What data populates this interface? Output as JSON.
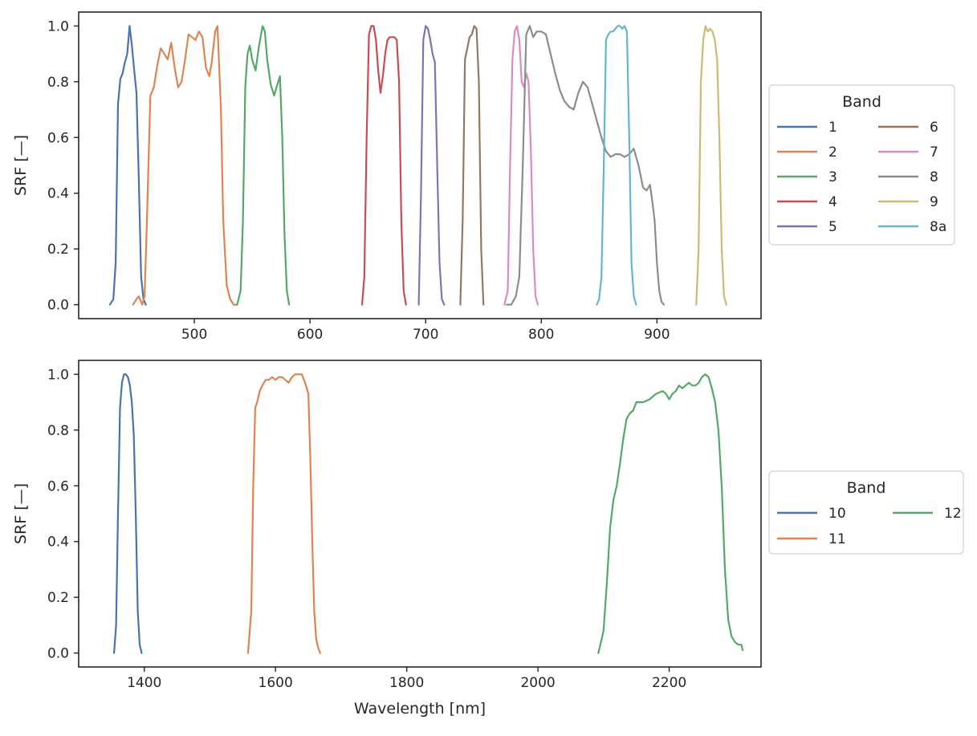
{
  "chart_data": [
    {
      "type": "line",
      "xlabel": "",
      "ylabel": "SRF [—]",
      "xlim": [
        400,
        990
      ],
      "ylim": [
        -0.05,
        1.05
      ],
      "xticks": [
        500,
        600,
        700,
        800,
        900
      ],
      "yticks": [
        0.0,
        0.2,
        0.4,
        0.6,
        0.8,
        1.0
      ],
      "grid": false,
      "legend": {
        "title": "Band",
        "placement": "outside-right",
        "columns": 2
      },
      "series": [
        {
          "name": "1",
          "color": "#4c72b0",
          "x": [
            427,
            430,
            432,
            434,
            436,
            438,
            440,
            442,
            444,
            446,
            448,
            450,
            452,
            454,
            456,
            458
          ],
          "y": [
            0.0,
            0.02,
            0.15,
            0.72,
            0.81,
            0.83,
            0.87,
            0.9,
            1.0,
            0.93,
            0.84,
            0.76,
            0.45,
            0.1,
            0.02,
            0.0
          ]
        },
        {
          "name": "2",
          "color": "#dd8452",
          "x": [
            447,
            450,
            452,
            455,
            457,
            459,
            462,
            465,
            468,
            471,
            474,
            477,
            480,
            483,
            486,
            489,
            492,
            495,
            498,
            501,
            504,
            507,
            510,
            513,
            515,
            518,
            520,
            523,
            525,
            528,
            531,
            534,
            537
          ],
          "y": [
            0.0,
            0.02,
            0.03,
            0.0,
            0.03,
            0.3,
            0.75,
            0.78,
            0.86,
            0.92,
            0.9,
            0.88,
            0.94,
            0.85,
            0.78,
            0.8,
            0.88,
            0.97,
            0.96,
            0.95,
            0.98,
            0.96,
            0.85,
            0.82,
            0.87,
            0.98,
            1.0,
            0.7,
            0.3,
            0.07,
            0.02,
            0.0,
            0.0
          ]
        },
        {
          "name": "3",
          "color": "#55a868",
          "x": [
            537,
            540,
            542,
            544,
            546,
            548,
            550,
            553,
            556,
            559,
            561,
            563,
            566,
            569,
            571,
            574,
            576,
            578,
            580,
            582
          ],
          "y": [
            0.0,
            0.05,
            0.3,
            0.78,
            0.9,
            0.93,
            0.88,
            0.84,
            0.93,
            1.0,
            0.98,
            0.88,
            0.79,
            0.75,
            0.78,
            0.82,
            0.6,
            0.25,
            0.05,
            0.0
          ]
        },
        {
          "name": "4",
          "color": "#c44e52",
          "x": [
            645,
            647,
            649,
            651,
            653,
            655,
            657,
            659,
            661,
            663,
            665,
            667,
            669,
            671,
            673,
            675,
            677,
            679,
            681,
            683
          ],
          "y": [
            0.0,
            0.1,
            0.6,
            0.97,
            1.0,
            1.0,
            0.95,
            0.84,
            0.76,
            0.82,
            0.9,
            0.95,
            0.96,
            0.96,
            0.96,
            0.95,
            0.8,
            0.3,
            0.05,
            0.0
          ]
        },
        {
          "name": "5",
          "color": "#8172b3",
          "x": [
            694,
            696,
            698,
            700,
            702,
            704,
            706,
            708,
            710,
            712,
            714,
            716
          ],
          "y": [
            0.0,
            0.4,
            0.95,
            1.0,
            0.99,
            0.95,
            0.9,
            0.87,
            0.5,
            0.15,
            0.02,
            0.0
          ]
        },
        {
          "name": "6",
          "color": "#937860",
          "x": [
            730,
            732,
            734,
            736,
            738,
            740,
            742,
            744,
            746,
            748,
            750
          ],
          "y": [
            0.0,
            0.3,
            0.88,
            0.92,
            0.96,
            0.97,
            1.0,
            0.99,
            0.8,
            0.2,
            0.0
          ]
        },
        {
          "name": "7",
          "color": "#da8bc3",
          "x": [
            768,
            771,
            773,
            775,
            777,
            779,
            781,
            783,
            785,
            787,
            789,
            791,
            793,
            795,
            797
          ],
          "y": [
            0.0,
            0.05,
            0.5,
            0.88,
            0.98,
            1.0,
            0.95,
            0.8,
            0.78,
            0.83,
            0.8,
            0.55,
            0.2,
            0.03,
            0.0
          ]
        },
        {
          "name": "8",
          "color": "#8c8c8c",
          "x": [
            770,
            774,
            778,
            781,
            784,
            787,
            790,
            793,
            796,
            800,
            804,
            808,
            812,
            816,
            820,
            824,
            828,
            832,
            836,
            840,
            844,
            848,
            852,
            856,
            860,
            864,
            868,
            872,
            876,
            880,
            884,
            888,
            891,
            894,
            896,
            898,
            900,
            902,
            904,
            906
          ],
          "y": [
            0.0,
            0.0,
            0.03,
            0.1,
            0.5,
            0.97,
            1.0,
            0.96,
            0.98,
            0.98,
            0.97,
            0.9,
            0.83,
            0.77,
            0.73,
            0.71,
            0.7,
            0.76,
            0.8,
            0.78,
            0.72,
            0.66,
            0.6,
            0.55,
            0.53,
            0.54,
            0.54,
            0.53,
            0.54,
            0.56,
            0.5,
            0.42,
            0.41,
            0.43,
            0.37,
            0.3,
            0.15,
            0.05,
            0.01,
            0.0
          ]
        },
        {
          "name": "9",
          "color": "#ccb974",
          "x": [
            934,
            936,
            938,
            940,
            942,
            944,
            946,
            948,
            950,
            952,
            954,
            956,
            958,
            960
          ],
          "y": [
            0.0,
            0.2,
            0.8,
            0.95,
            1.0,
            0.98,
            0.99,
            0.98,
            0.95,
            0.88,
            0.6,
            0.2,
            0.03,
            0.0
          ]
        },
        {
          "name": "8a",
          "color": "#64b5cd",
          "x": [
            848,
            850,
            852,
            854,
            856,
            858,
            860,
            862,
            864,
            866,
            868,
            870,
            872,
            874,
            876,
            878,
            880,
            882
          ],
          "y": [
            0.0,
            0.02,
            0.1,
            0.5,
            0.95,
            0.97,
            0.98,
            0.98,
            0.99,
            1.0,
            1.0,
            0.99,
            1.0,
            0.98,
            0.6,
            0.15,
            0.03,
            0.0
          ]
        }
      ]
    },
    {
      "type": "line",
      "xlabel": "Wavelength [nm]",
      "ylabel": "SRF [—]",
      "xlim": [
        1300,
        2340
      ],
      "ylim": [
        -0.05,
        1.05
      ],
      "xticks": [
        1400,
        1600,
        1800,
        2000,
        2200
      ],
      "yticks": [
        0.0,
        0.2,
        0.4,
        0.6,
        0.8,
        1.0
      ],
      "grid": false,
      "legend": {
        "title": "Band",
        "placement": "outside-right",
        "columns": 2
      },
      "series": [
        {
          "name": "10",
          "color": "#4c72b0",
          "x": [
            1354,
            1357,
            1360,
            1363,
            1366,
            1369,
            1372,
            1375,
            1378,
            1381,
            1384,
            1387,
            1390,
            1393,
            1396
          ],
          "y": [
            0.0,
            0.1,
            0.5,
            0.88,
            0.97,
            1.0,
            1.0,
            0.99,
            0.96,
            0.9,
            0.78,
            0.5,
            0.15,
            0.03,
            0.0
          ]
        },
        {
          "name": "11",
          "color": "#dd8452",
          "x": [
            1558,
            1563,
            1566,
            1569,
            1572,
            1576,
            1580,
            1585,
            1590,
            1595,
            1600,
            1605,
            1610,
            1615,
            1620,
            1625,
            1630,
            1635,
            1640,
            1645,
            1650,
            1653,
            1656,
            1659,
            1662,
            1665,
            1668
          ],
          "y": [
            0.0,
            0.15,
            0.6,
            0.88,
            0.9,
            0.94,
            0.96,
            0.98,
            0.98,
            0.99,
            0.98,
            0.99,
            0.99,
            0.98,
            0.97,
            0.99,
            1.0,
            1.0,
            1.0,
            0.97,
            0.93,
            0.7,
            0.4,
            0.15,
            0.05,
            0.02,
            0.0
          ]
        },
        {
          "name": "12",
          "color": "#55a868",
          "x": [
            2092,
            2095,
            2100,
            2105,
            2110,
            2115,
            2120,
            2125,
            2130,
            2135,
            2140,
            2145,
            2150,
            2160,
            2170,
            2180,
            2190,
            2195,
            2200,
            2205,
            2210,
            2215,
            2220,
            2225,
            2230,
            2235,
            2240,
            2245,
            2250,
            2255,
            2260,
            2265,
            2270,
            2275,
            2280,
            2285,
            2290,
            2295,
            2300,
            2305,
            2310,
            2312
          ],
          "y": [
            0.0,
            0.03,
            0.08,
            0.25,
            0.45,
            0.55,
            0.6,
            0.68,
            0.77,
            0.84,
            0.86,
            0.87,
            0.9,
            0.9,
            0.91,
            0.93,
            0.94,
            0.93,
            0.91,
            0.93,
            0.94,
            0.96,
            0.95,
            0.96,
            0.97,
            0.96,
            0.96,
            0.97,
            0.99,
            1.0,
            0.99,
            0.95,
            0.9,
            0.8,
            0.6,
            0.3,
            0.12,
            0.06,
            0.04,
            0.03,
            0.03,
            0.01
          ]
        }
      ]
    }
  ]
}
